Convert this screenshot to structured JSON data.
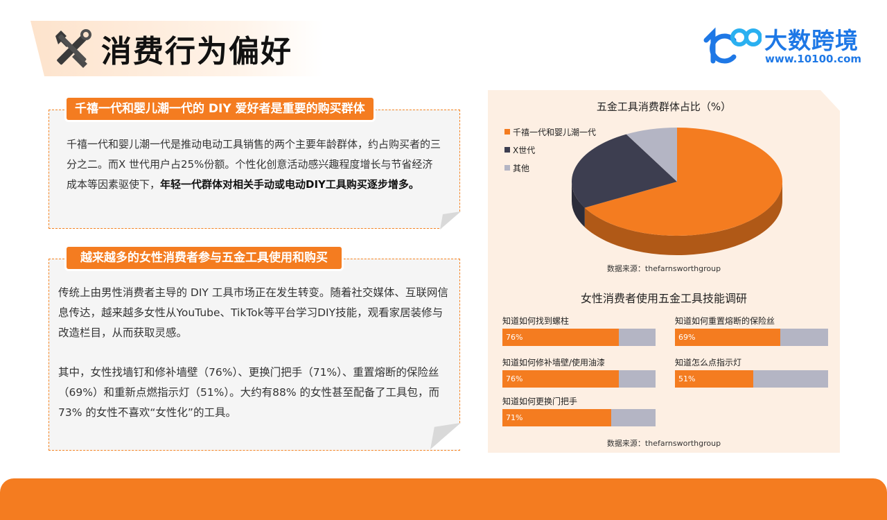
{
  "page": {
    "title": "消费行为偏好"
  },
  "logo": {
    "name": "大数跨境",
    "url": "www.10100.com"
  },
  "section1": {
    "tag": "千禧一代和婴儿潮一代的 DIY 爱好者是重要的购买群体",
    "text_plain": "千禧一代和婴儿潮一代是推动电动工具销售的两个主要年龄群体，约占购买者的三分之二。而X 世代用户占25%份额。个性化创意活动感兴趣程度增长与节省经济成本等因素驱使下，",
    "text_bold": "年轻一代群体对相关手动或电动DIY工具购买逐步增多。"
  },
  "section2": {
    "tag": "越来越多的女性消费者参与五金工具使用和购买",
    "para1": "传统上由男性消费者主导的 DIY 工具市场正在发生转变。随着社交媒体、互联网信息传达，越来越多女性从YouTube、TikTok等平台学习DIY技能，观看家居装修与改造栏目，从而获取灵感。",
    "para2": "其中，女性找墙钉和修补墙壁（76%）、更换门把手（71%）、重置熔断的保险丝（69%）和重新点燃指示灯（51%）。大约有88% 的女性甚至配备了工具包，而73% 的女性不喜欢“女性化”的工具。"
  },
  "colors": {
    "accent": "#f47c20",
    "dark": "#3d3e50",
    "grey": "#b4b5c4",
    "logo_blue": "#1e78e6",
    "panel_bg": "#fdefe3"
  },
  "chart_data": [
    {
      "type": "pie",
      "title": "五金工具消费群体占比（%）",
      "labels": [
        "千禧一代和婴儿潮一代",
        "X世代",
        "其他"
      ],
      "values": [
        67,
        25,
        8
      ],
      "colors": [
        "#f47c20",
        "#3d3e50",
        "#b4b5c4"
      ],
      "legend": "top-left",
      "source": "数据来源：thefarnsworthgroup"
    },
    {
      "type": "bar",
      "title": "女性消费者使用五金工具技能调研",
      "categories": [
        "知道如何找到螺柱",
        "知道如何重置熔断的保险丝",
        "知道如何修补墙壁/使用油漆",
        "知道怎么点指示灯",
        "知道如何更换门把手"
      ],
      "values": [
        76,
        69,
        76,
        51,
        71
      ],
      "value_labels": [
        "76%",
        "69%",
        "76%",
        "51%",
        "71%"
      ],
      "xlim": [
        0,
        100
      ],
      "source": "数据来源：thefarnsworthgroup"
    }
  ]
}
